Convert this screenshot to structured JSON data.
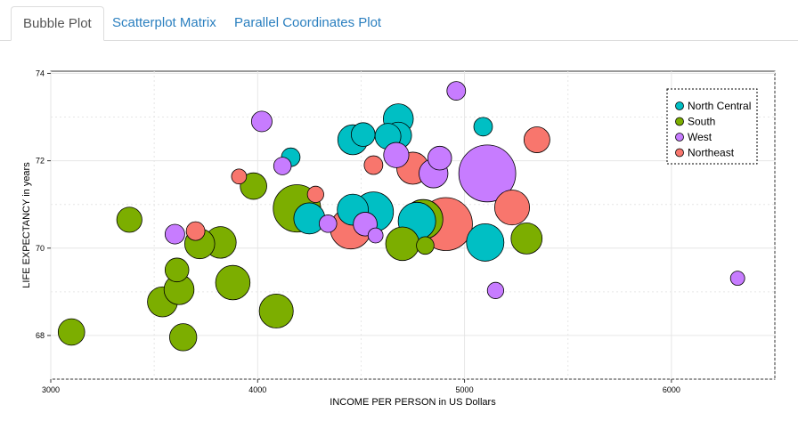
{
  "tabs": [
    {
      "label": "Bubble Plot",
      "active": true
    },
    {
      "label": "Scatterplot Matrix",
      "active": false
    },
    {
      "label": "Parallel Coordinates Plot",
      "active": false
    }
  ],
  "colors": {
    "tab_active_text": "#555555",
    "tab_link": "#2a7fbf",
    "North Central": "#00BFC4",
    "South": "#7CAE00",
    "West": "#C77CFF",
    "Northeast": "#F8766D"
  },
  "chart_data": {
    "type": "scatter",
    "subtype": "bubble",
    "xlabel": "INCOME PER PERSON in US Dollars",
    "ylabel": "LIFE EXPECTANCY in years",
    "xlim": [
      3000,
      6500
    ],
    "ylim": [
      67,
      74.05
    ],
    "xticks": [
      3000,
      4000,
      5000,
      6000
    ],
    "yticks": [
      68,
      70,
      72,
      74
    ],
    "grid": true,
    "legend_position": "top-right",
    "series": [
      {
        "name": "North Central",
        "points": [
          {
            "x": 4460,
            "y": 72.48,
            "size": 2.2
          },
          {
            "x": 4510,
            "y": 72.6,
            "size": 1.2
          },
          {
            "x": 4630,
            "y": 72.56,
            "size": 1.5
          },
          {
            "x": 4680,
            "y": 72.96,
            "size": 2.2
          },
          {
            "x": 4680,
            "y": 72.58,
            "size": 1.6
          },
          {
            "x": 4160,
            "y": 72.08,
            "size": 0.6
          },
          {
            "x": 4250,
            "y": 70.68,
            "size": 2.4
          },
          {
            "x": 4460,
            "y": 70.88,
            "size": 2.4
          },
          {
            "x": 4560,
            "y": 70.83,
            "size": 4.4
          },
          {
            "x": 4770,
            "y": 70.62,
            "size": 3.8
          },
          {
            "x": 5090,
            "y": 72.78,
            "size": 0.6
          },
          {
            "x": 5100,
            "y": 70.13,
            "size": 3.8
          }
        ]
      },
      {
        "name": "South",
        "points": [
          {
            "x": 3100,
            "y": 68.08,
            "size": 1.6
          },
          {
            "x": 3380,
            "y": 70.65,
            "size": 1.4
          },
          {
            "x": 3540,
            "y": 68.77,
            "size": 2.2
          },
          {
            "x": 3610,
            "y": 69.5,
            "size": 1.2
          },
          {
            "x": 3620,
            "y": 69.05,
            "size": 2.2
          },
          {
            "x": 3640,
            "y": 67.96,
            "size": 1.7
          },
          {
            "x": 3720,
            "y": 70.1,
            "size": 2.2
          },
          {
            "x": 3820,
            "y": 70.13,
            "size": 2.5
          },
          {
            "x": 3880,
            "y": 69.21,
            "size": 3.1
          },
          {
            "x": 3980,
            "y": 71.42,
            "size": 1.6
          },
          {
            "x": 4090,
            "y": 68.56,
            "size": 3.0
          },
          {
            "x": 4190,
            "y": 70.91,
            "size": 6.6
          },
          {
            "x": 4700,
            "y": 70.1,
            "size": 2.9
          },
          {
            "x": 4800,
            "y": 70.66,
            "size": 4.3
          },
          {
            "x": 4810,
            "y": 70.06,
            "size": 0.5
          },
          {
            "x": 5300,
            "y": 70.22,
            "size": 2.4
          }
        ]
      },
      {
        "name": "West",
        "points": [
          {
            "x": 3600,
            "y": 70.32,
            "size": 0.7
          },
          {
            "x": 4020,
            "y": 72.9,
            "size": 0.8
          },
          {
            "x": 4120,
            "y": 71.88,
            "size": 0.5
          },
          {
            "x": 4340,
            "y": 70.56,
            "size": 0.5
          },
          {
            "x": 4520,
            "y": 70.55,
            "size": 1.2
          },
          {
            "x": 4570,
            "y": 70.29,
            "size": 0.3
          },
          {
            "x": 4670,
            "y": 72.13,
            "size": 1.4
          },
          {
            "x": 4850,
            "y": 71.71,
            "size": 2.0
          },
          {
            "x": 4880,
            "y": 72.06,
            "size": 1.2
          },
          {
            "x": 4960,
            "y": 73.6,
            "size": 0.6
          },
          {
            "x": 5110,
            "y": 71.71,
            "size": 10.0
          },
          {
            "x": 5150,
            "y": 69.03,
            "size": 0.4
          },
          {
            "x": 6320,
            "y": 69.31,
            "size": 0.25
          }
        ]
      },
      {
        "name": "Northeast",
        "points": [
          {
            "x": 3700,
            "y": 70.39,
            "size": 0.6
          },
          {
            "x": 3910,
            "y": 71.64,
            "size": 0.3
          },
          {
            "x": 4280,
            "y": 71.23,
            "size": 0.4
          },
          {
            "x": 4450,
            "y": 70.45,
            "size": 4.7
          },
          {
            "x": 4560,
            "y": 71.9,
            "size": 0.6
          },
          {
            "x": 4750,
            "y": 71.83,
            "size": 2.6
          },
          {
            "x": 4910,
            "y": 70.55,
            "size": 8.5
          },
          {
            "x": 5230,
            "y": 70.93,
            "size": 3.2
          },
          {
            "x": 5350,
            "y": 72.48,
            "size": 1.5
          }
        ]
      }
    ]
  }
}
